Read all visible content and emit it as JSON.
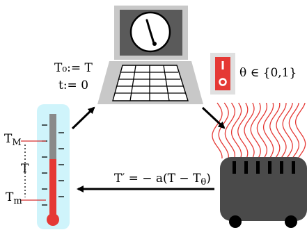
{
  "diagram": {
    "controller": {
      "icon": "laptop-with-clock-icon",
      "assignment_T0": "T₀:= T",
      "assignment_t": "t:= 0"
    },
    "switch": {
      "icon": "toggle-switch-icon",
      "label": "θ ∈ {0,1}",
      "color": "#e53935"
    },
    "heater": {
      "icon": "heater-radiator-icon",
      "wave_color": "#e53935"
    },
    "dynamics": {
      "equation": "T′ = − a(T − Tθ)"
    },
    "thermometer": {
      "icon": "thermometer-icon",
      "label_max": "T_M",
      "label_mid": "T",
      "label_min": "T_m",
      "tube_color": "#cff4fb",
      "mercury_color": "#e53935"
    }
  }
}
